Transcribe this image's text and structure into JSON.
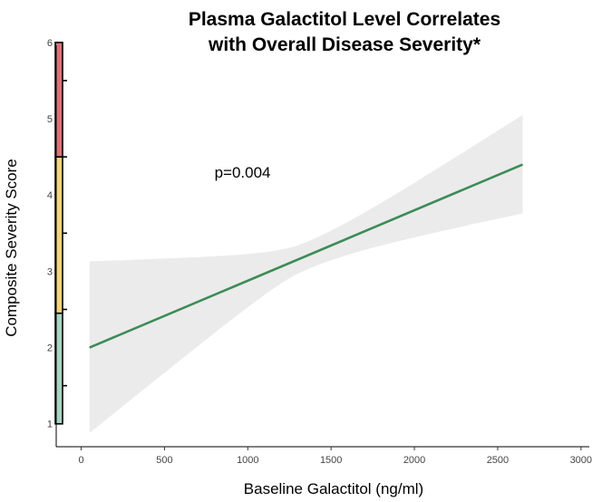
{
  "chart_data": {
    "type": "line",
    "title_line1": "Plasma Galactitol Level Correlates",
    "title_line2": "with Overall Disease Severity*",
    "xlabel": "Baseline Galactitol (ng/ml)",
    "ylabel": "Composite Severity Score",
    "xlim": [
      -150,
      3050
    ],
    "ylim": [
      0.7,
      6.2
    ],
    "x_ticks": [
      0,
      500,
      1000,
      1500,
      2000,
      2500,
      3000
    ],
    "y_ticks": [
      1,
      2,
      3,
      4,
      5,
      6
    ],
    "series": [
      {
        "x": [
          50,
          2650
        ],
        "y": [
          2.0,
          4.4
        ],
        "ci_lower": [
          0.88,
          3.76
        ],
        "ci_upper": [
          3.13,
          5.05
        ],
        "line_color": "#3d8b57",
        "ci_color": "#ebebeb"
      }
    ],
    "severity_bands": [
      {
        "from": 1.0,
        "to": 2.45,
        "color": "#a9d3c4"
      },
      {
        "from": 2.45,
        "to": 4.5,
        "color": "#f5d37c"
      },
      {
        "from": 4.5,
        "to": 6.0,
        "color": "#d9737a"
      }
    ],
    "annotations": [
      {
        "text": "p=0.004",
        "x": 800,
        "y": 4.3
      }
    ],
    "grid": false
  }
}
